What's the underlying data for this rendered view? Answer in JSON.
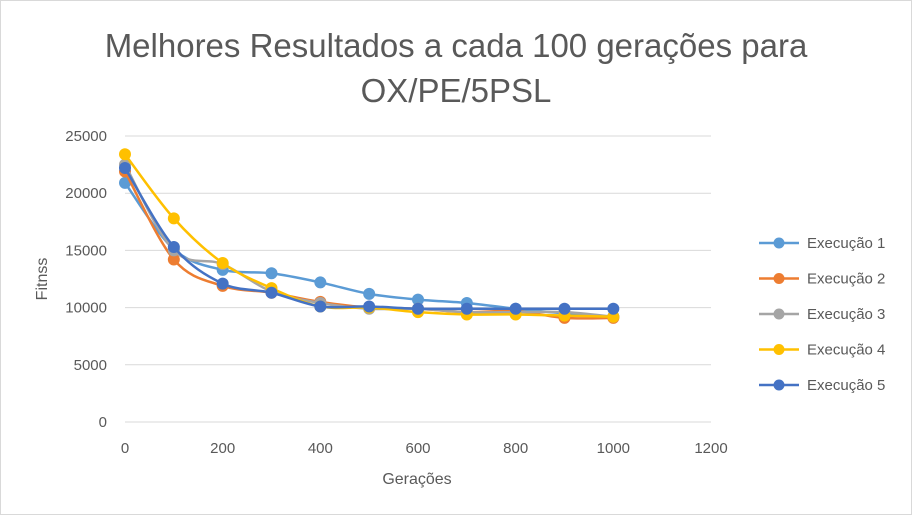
{
  "chart_data": {
    "type": "line",
    "title_lines": [
      "Melhores Resultados a cada 100 gerações para",
      "OX/PE/5PSL"
    ],
    "xlabel": "Gerações",
    "ylabel": "Fitnss",
    "xlim": [
      0,
      1200
    ],
    "ylim": [
      0,
      25000
    ],
    "x_ticks": [
      0,
      200,
      400,
      600,
      800,
      1000,
      1200
    ],
    "y_ticks": [
      0,
      5000,
      10000,
      15000,
      20000,
      25000
    ],
    "grid": "horizontal major",
    "legend_position": "right",
    "smooth": true,
    "x": [
      0,
      100,
      200,
      300,
      400,
      500,
      600,
      700,
      800,
      900,
      1000
    ],
    "series": [
      {
        "name": "Execução 1",
        "color": "#5B9BD5",
        "values": [
          20900,
          15100,
          13300,
          13000,
          12200,
          11200,
          10700,
          10400,
          9900,
          9500,
          9200
        ]
      },
      {
        "name": "Execução 2",
        "color": "#ED7D31",
        "values": [
          21900,
          14200,
          11900,
          11300,
          10500,
          10000,
          9900,
          9600,
          9700,
          9100,
          9100
        ]
      },
      {
        "name": "Execução 3",
        "color": "#A5A5A5",
        "values": [
          22500,
          15000,
          13800,
          11400,
          10400,
          9900,
          9900,
          9600,
          9600,
          9600,
          9200
        ]
      },
      {
        "name": "Execução 4",
        "color": "#FFC000",
        "values": [
          23400,
          17800,
          13900,
          11700,
          10100,
          10000,
          9600,
          9400,
          9400,
          9300,
          9200
        ]
      },
      {
        "name": "Execução 5",
        "color": "#4472C4",
        "values": [
          22200,
          15300,
          12100,
          11300,
          10100,
          10100,
          9900,
          9900,
          9900,
          9900,
          9900
        ]
      }
    ]
  }
}
